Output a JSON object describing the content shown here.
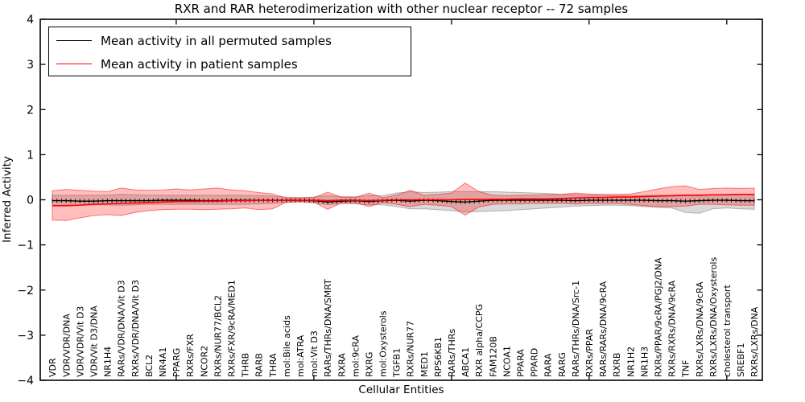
{
  "chart_data": {
    "type": "line",
    "title": "RXR and RAR heterodimerization with other nuclear receptor -- 72 samples",
    "xlabel": "Cellular Entities",
    "ylabel": "Inferred Activity",
    "ylim": [
      -4,
      4
    ],
    "yticks": [
      -4,
      -3,
      -2,
      -1,
      0,
      1,
      2,
      3,
      4
    ],
    "ytick_labels": [
      "−4",
      "−3",
      "−2",
      "−1",
      "0",
      "1",
      "2",
      "3",
      "4"
    ],
    "xtick_major_indices": [
      9,
      19,
      29,
      39,
      49
    ],
    "grid": false,
    "legend_position": "upper left",
    "legend": [
      {
        "label": "Mean activity in all permuted samples",
        "color": "#000000"
      },
      {
        "label": "Mean activity in patient samples",
        "color": "#ff0000"
      }
    ],
    "categories": [
      "VDR",
      "VDR/VDR/DNA",
      "VDR/VDR/Vit D3",
      "VDR/Vit D3/DNA",
      "NR1H4",
      "RARs/VDR/DNA/Vit D3",
      "RXRs/VDR/DNA/Vit D3",
      "BCL2",
      "NR4A1",
      "PPARG",
      "RXRs/FXR",
      "NCOR2",
      "RXRs/NUR77/BCL2",
      "RXRs/FXR/9cRA/MED1",
      "THRB",
      "RARB",
      "THRA",
      "mol:Bile acids",
      "mol:ATRA",
      "mol:Vit D3",
      "RARs/THRs/DNA/SMRT",
      "RXRA",
      "mol:9cRA",
      "RXRG",
      "mol:Oxysterols",
      "TGFB1",
      "RXRs/NUR77",
      "MED1",
      "RPS6KB1",
      "RARs/THRs",
      "ABCA1",
      "RXR alpha/CCPG",
      "FAM120B",
      "NCOA1",
      "PPARA",
      "PPARD",
      "RARA",
      "RARG",
      "RARs/THRs/DNA/Src-1",
      "RXRs/PPAR",
      "RARs/RARs/DNA/9cRA",
      "RXRB",
      "NR1H2",
      "NR1H3",
      "RXRs/PPAR/9cRA/PGJ2/DNA",
      "RXRs/RXRs/DNA/9cRA",
      "TNF",
      "RXRs/LXRs/DNA/9cRA",
      "RXRs/LXRs/DNA/Oxysterols",
      "cholesterol transport",
      "SREBF1",
      "RXRs/LXRs/DNA"
    ],
    "series": [
      {
        "name": "Mean activity in all permuted samples",
        "color": "#000000",
        "marker": "tick",
        "values": [
          -0.02,
          -0.02,
          -0.03,
          -0.03,
          -0.02,
          -0.02,
          -0.02,
          -0.02,
          -0.01,
          -0.01,
          -0.01,
          -0.02,
          -0.02,
          -0.01,
          -0.01,
          -0.01,
          -0.01,
          -0.01,
          -0.01,
          -0.02,
          -0.05,
          -0.03,
          -0.02,
          -0.04,
          -0.02,
          -0.01,
          -0.03,
          -0.01,
          -0.02,
          -0.04,
          -0.05,
          -0.03,
          -0.01,
          -0.01,
          -0.01,
          -0.01,
          -0.01,
          -0.01,
          -0.02,
          -0.01,
          -0.01,
          -0.01,
          -0.01,
          -0.01,
          -0.02,
          -0.02,
          -0.03,
          -0.02,
          -0.01,
          -0.01,
          -0.02,
          -0.02
        ]
      },
      {
        "name": "Mean activity in patient samples",
        "color": "#ff0000",
        "marker": "none",
        "values": [
          -0.13,
          -0.13,
          -0.12,
          -0.1,
          -0.09,
          -0.08,
          -0.07,
          -0.06,
          -0.05,
          -0.04,
          -0.04,
          -0.03,
          -0.03,
          -0.02,
          -0.02,
          -0.01,
          -0.01,
          -0.01,
          -0.01,
          -0.01,
          -0.02,
          -0.01,
          -0.01,
          -0.02,
          -0.01,
          0.0,
          0.0,
          0.0,
          0.0,
          0.0,
          0.01,
          0.01,
          0.01,
          0.01,
          0.02,
          0.02,
          0.02,
          0.03,
          0.04,
          0.05,
          0.05,
          0.06,
          0.06,
          0.07,
          0.08,
          0.09,
          0.1,
          0.1,
          0.11,
          0.11,
          0.12,
          0.12
        ]
      }
    ],
    "bands": [
      {
        "name": "permuted samples std band",
        "fill": "rgba(128,128,128,0.30)",
        "edge": "rgba(128,128,128,0.55)",
        "upper": [
          0.1,
          0.1,
          0.1,
          0.1,
          0.1,
          0.12,
          0.11,
          0.1,
          0.1,
          0.1,
          0.1,
          0.1,
          0.1,
          0.1,
          0.1,
          0.09,
          0.08,
          0.06,
          0.05,
          0.06,
          0.09,
          0.07,
          0.07,
          0.09,
          0.09,
          0.15,
          0.18,
          0.16,
          0.17,
          0.18,
          0.18,
          0.18,
          0.18,
          0.17,
          0.16,
          0.15,
          0.14,
          0.12,
          0.11,
          0.1,
          0.1,
          0.09,
          0.09,
          0.1,
          0.1,
          0.1,
          0.11,
          0.11,
          0.11,
          0.12,
          0.12,
          0.12
        ],
        "lower": [
          -0.12,
          -0.12,
          -0.12,
          -0.11,
          -0.11,
          -0.12,
          -0.11,
          -0.1,
          -0.1,
          -0.1,
          -0.1,
          -0.1,
          -0.1,
          -0.1,
          -0.1,
          -0.09,
          -0.08,
          -0.06,
          -0.05,
          -0.07,
          -0.11,
          -0.08,
          -0.09,
          -0.11,
          -0.11,
          -0.15,
          -0.2,
          -0.2,
          -0.22,
          -0.24,
          -0.27,
          -0.26,
          -0.25,
          -0.24,
          -0.22,
          -0.2,
          -0.18,
          -0.16,
          -0.14,
          -0.13,
          -0.12,
          -0.12,
          -0.13,
          -0.15,
          -0.17,
          -0.18,
          -0.28,
          -0.3,
          -0.2,
          -0.18,
          -0.2,
          -0.21
        ]
      },
      {
        "name": "patient samples std band",
        "fill": "rgba(255,0,0,0.25)",
        "edge": "rgba(255,0,0,0.50)",
        "upper": [
          0.2,
          0.23,
          0.21,
          0.19,
          0.18,
          0.26,
          0.22,
          0.21,
          0.22,
          0.24,
          0.22,
          0.24,
          0.26,
          0.22,
          0.2,
          0.16,
          0.13,
          0.04,
          0.04,
          0.05,
          0.17,
          0.06,
          0.05,
          0.15,
          0.05,
          0.1,
          0.21,
          0.1,
          0.12,
          0.15,
          0.37,
          0.18,
          0.1,
          0.09,
          0.1,
          0.1,
          0.11,
          0.12,
          0.15,
          0.13,
          0.12,
          0.12,
          0.13,
          0.18,
          0.24,
          0.29,
          0.31,
          0.23,
          0.25,
          0.26,
          0.25,
          0.26
        ],
        "lower": [
          -0.45,
          -0.46,
          -0.4,
          -0.35,
          -0.33,
          -0.35,
          -0.28,
          -0.24,
          -0.22,
          -0.21,
          -0.21,
          -0.22,
          -0.21,
          -0.2,
          -0.18,
          -0.22,
          -0.2,
          -0.05,
          -0.04,
          -0.05,
          -0.21,
          -0.07,
          -0.06,
          -0.15,
          -0.06,
          -0.1,
          -0.15,
          -0.1,
          -0.12,
          -0.15,
          -0.34,
          -0.16,
          -0.1,
          -0.09,
          -0.09,
          -0.08,
          -0.08,
          -0.08,
          -0.09,
          -0.08,
          -0.08,
          -0.08,
          -0.1,
          -0.13,
          -0.15,
          -0.15,
          -0.14,
          -0.1,
          -0.1,
          -0.11,
          -0.12,
          -0.12
        ]
      }
    ]
  }
}
